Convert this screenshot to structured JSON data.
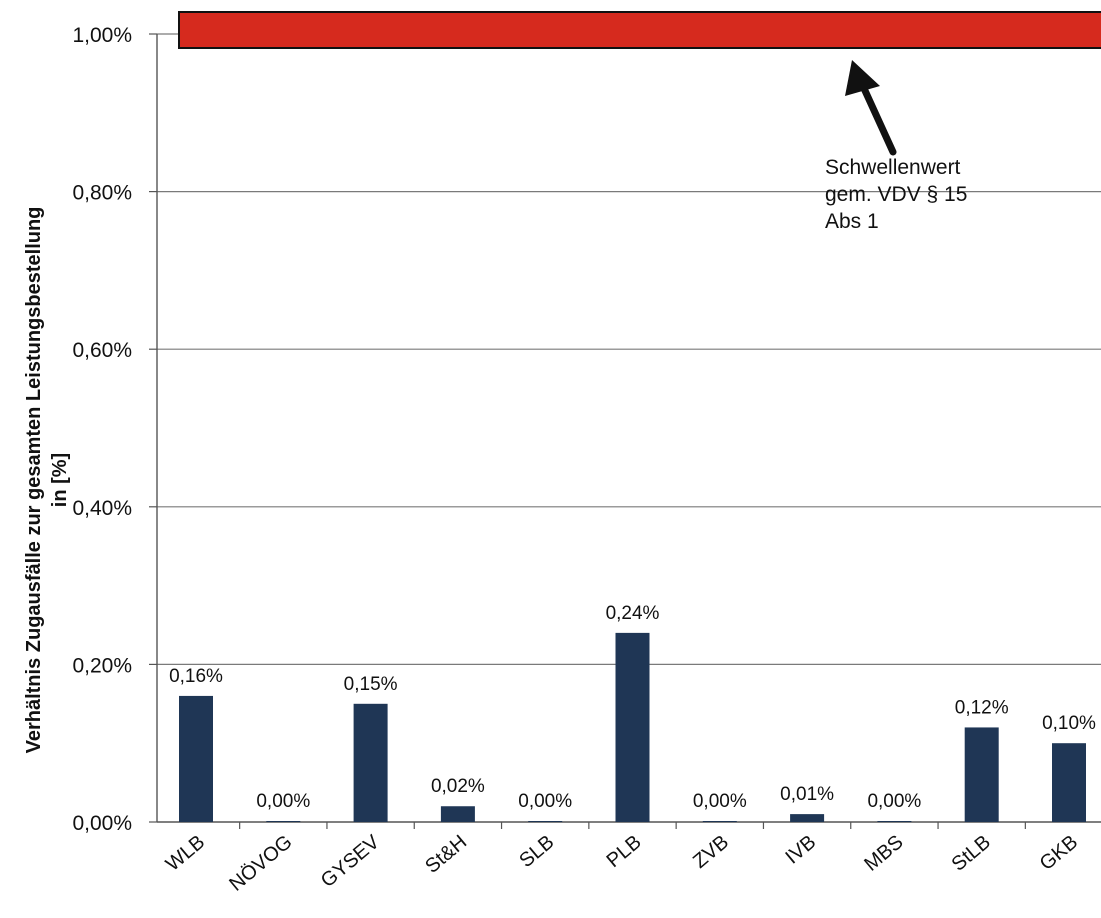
{
  "chart_data": {
    "type": "bar",
    "ylabel_line1": "Verhältnis Zugausfälle zur gesamten Leistungsbestellung",
    "ylabel_line2": "in [%]",
    "ylim": [
      0,
      1.0
    ],
    "yticks": [
      {
        "value": 0.0,
        "label": "0,00%"
      },
      {
        "value": 0.2,
        "label": "0,20%"
      },
      {
        "value": 0.4,
        "label": "0,40%"
      },
      {
        "value": 0.6,
        "label": "0,60%"
      },
      {
        "value": 0.8,
        "label": "0,80%"
      },
      {
        "value": 1.0,
        "label": "1,00%"
      }
    ],
    "grid": true,
    "categories": [
      "WLB",
      "NÖVOG",
      "GYSEV",
      "St&H",
      "SLB",
      "PLB",
      "ZVB",
      "IVB",
      "MBS",
      "StLB",
      "GKB"
    ],
    "values": [
      0.16,
      0.0,
      0.15,
      0.02,
      0.0,
      0.24,
      0.0,
      0.01,
      0.0,
      0.12,
      0.1
    ],
    "data_labels": [
      "0,16%",
      "0,00%",
      "0,15%",
      "0,02%",
      "0,00%",
      "0,24%",
      "0,00%",
      "0,01%",
      "0,00%",
      "0,12%",
      "0,10%"
    ],
    "bar_color": "#1f3655",
    "threshold": {
      "value": 1.0,
      "color": "#d62a1e",
      "annotation_lines": [
        "Schwellenwert",
        "gem. VDV § 15",
        "Abs 1"
      ]
    }
  }
}
